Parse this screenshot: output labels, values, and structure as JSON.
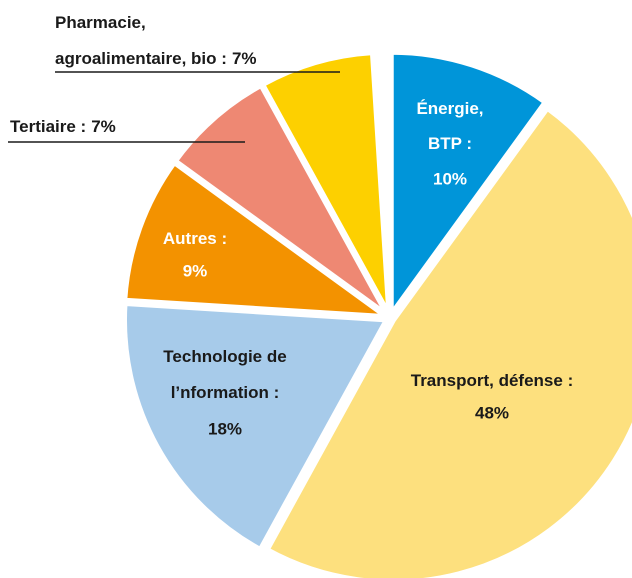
{
  "chart_data": {
    "type": "pie",
    "categories": [
      [
        "Énergie,",
        "BTP :"
      ],
      [
        "Transport, défense :"
      ],
      [
        "Technologie de",
        "l’nformation :"
      ],
      [
        "Autres :"
      ],
      [
        "Tertiaire :"
      ],
      [
        "Pharmacie,",
        "agroalimentaire, bio :"
      ]
    ],
    "values": [
      10,
      48,
      18,
      9,
      7,
      7
    ],
    "value_labels": [
      "10%",
      "48%",
      "18%",
      "9%",
      "7%",
      "7%"
    ],
    "colors": [
      "#0095d9",
      "#fde07e",
      "#a7cbea",
      "#f39200",
      "#ee8873",
      "#fdd000"
    ]
  }
}
